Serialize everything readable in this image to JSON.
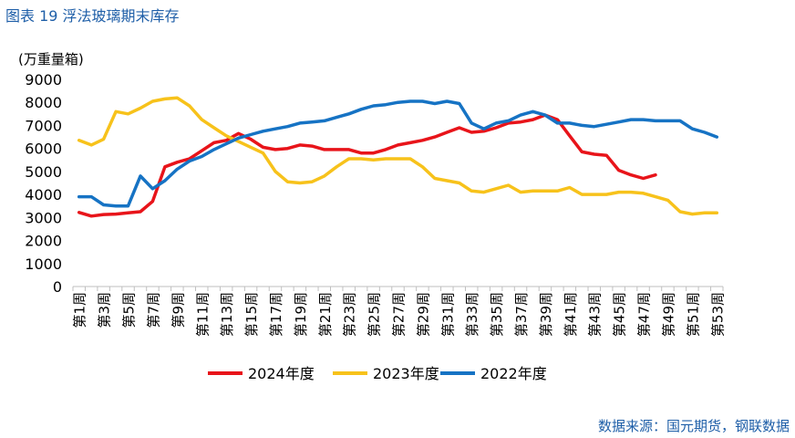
{
  "figure_title": "图表 19  浮法玻璃期末库存",
  "source": "数据来源：国元期货，钢联数据",
  "chart_data": {
    "type": "line",
    "title": "图表 19  浮法玻璃期末库存",
    "ylabel": "(万重量箱)",
    "xlabel": "",
    "ylim": [
      0,
      9000
    ],
    "yticks": [
      0,
      1000,
      2000,
      3000,
      4000,
      5000,
      6000,
      7000,
      8000,
      9000
    ],
    "grid": false,
    "legend_position": "bottom",
    "categories": [
      "第1周",
      "第2周",
      "第3周",
      "第4周",
      "第5周",
      "第6周",
      "第7周",
      "第8周",
      "第9周",
      "第10周",
      "第11周",
      "第12周",
      "第13周",
      "第14周",
      "第15周",
      "第16周",
      "第17周",
      "第18周",
      "第19周",
      "第20周",
      "第21周",
      "第22周",
      "第23周",
      "第24周",
      "第25周",
      "第26周",
      "第27周",
      "第28周",
      "第29周",
      "第30周",
      "第31周",
      "第32周",
      "第33周",
      "第34周",
      "第35周",
      "第36周",
      "第37周",
      "第38周",
      "第39周",
      "第40周",
      "第41周",
      "第42周",
      "第43周",
      "第44周",
      "第45周",
      "第46周",
      "第47周",
      "第48周",
      "第49周",
      "第50周",
      "第51周",
      "第52周",
      "第53周"
    ],
    "tick_labels": [
      "第1周",
      "第3周",
      "第5周",
      "第7周",
      "第9周",
      "第11周",
      "第13周",
      "第15周",
      "第17周",
      "第19周",
      "第21周",
      "第23周",
      "第25周",
      "第27周",
      "第29周",
      "第31周",
      "第33周",
      "第35周",
      "第37周",
      "第39周",
      "第41周",
      "第43周",
      "第45周",
      "第47周",
      "第49周",
      "第51周",
      "第53周"
    ],
    "series": [
      {
        "name": "2024年度",
        "color": "#e8141a",
        "values": [
          3220,
          3060,
          3130,
          3150,
          3200,
          3250,
          3700,
          5200,
          5400,
          5550,
          5900,
          6250,
          6350,
          6650,
          6400,
          6050,
          5950,
          6000,
          6150,
          6100,
          5950,
          5950,
          5950,
          5800,
          5800,
          5950,
          6150,
          6250,
          6350,
          6500,
          6700,
          6900,
          6700,
          6750,
          6900,
          7100,
          7150,
          7250,
          7450,
          7250,
          6550,
          5850,
          5750,
          5700,
          5050,
          4850,
          4700,
          4850,
          null,
          null,
          null,
          null,
          null
        ]
      },
      {
        "name": "2023年度",
        "color": "#f7c21b",
        "values": [
          6350,
          6150,
          6400,
          7600,
          7500,
          7750,
          8050,
          8150,
          8200,
          7850,
          7250,
          6900,
          6550,
          6300,
          6050,
          5800,
          5000,
          4550,
          4500,
          4550,
          4800,
          5200,
          5550,
          5550,
          5500,
          5550,
          5550,
          5550,
          5200,
          4700,
          4600,
          4500,
          4150,
          4100,
          4250,
          4400,
          4100,
          4150,
          4150,
          4150,
          4300,
          4000,
          4000,
          4000,
          4100,
          4100,
          4050,
          3900,
          3750,
          3250,
          3150,
          3200,
          3200
        ]
      },
      {
        "name": "2022年度",
        "color": "#1673c4",
        "values": [
          3900,
          3900,
          3550,
          3500,
          3500,
          4800,
          4250,
          4600,
          5100,
          5450,
          5650,
          5950,
          6200,
          6450,
          6600,
          6750,
          6850,
          6950,
          7100,
          7150,
          7200,
          7350,
          7500,
          7700,
          7850,
          7900,
          8000,
          8050,
          8050,
          7950,
          8050,
          7950,
          7100,
          6850,
          7100,
          7200,
          7450,
          7600,
          7450,
          7100,
          7100,
          7000,
          6950,
          7050,
          7150,
          7250,
          7250,
          7200,
          7200,
          7200,
          6850,
          6700,
          6500
        ]
      }
    ]
  }
}
